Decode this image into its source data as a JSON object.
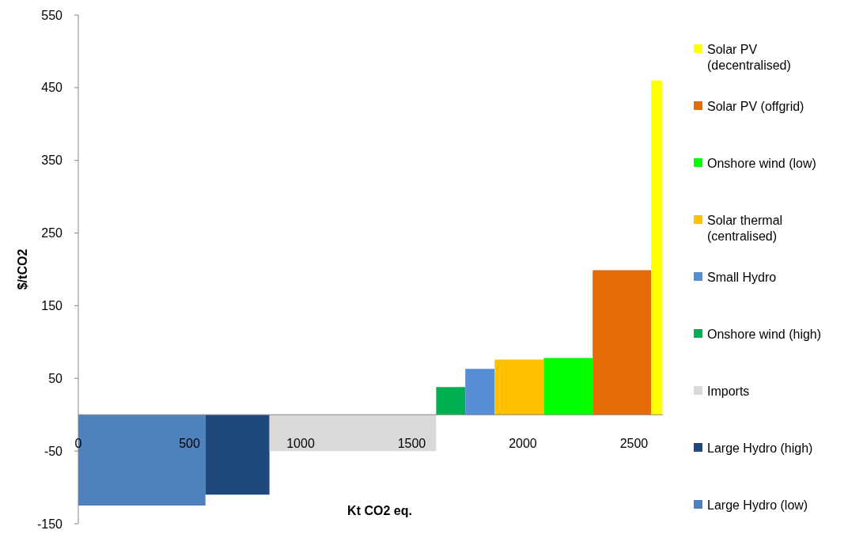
{
  "chart_data": {
    "type": "area",
    "xlabel": "Kt CO2 eq.",
    "ylabel": "$/tCO2",
    "xlim": [
      0,
      2630
    ],
    "xticks": [
      0,
      500,
      1000,
      1500,
      2000,
      2500
    ],
    "ylim": [
      -150,
      550
    ],
    "yticks": [
      -150,
      -50,
      50,
      150,
      250,
      350,
      450,
      550
    ],
    "grid": false,
    "legend": "right",
    "marker": "none",
    "series": [
      {
        "name": "Large Hydro (low)",
        "color": "#4f81bd",
        "x": [
          0,
          572
        ],
        "values": [
          -125,
          -125
        ]
      },
      {
        "name": "Large Hydro (high)",
        "color": "#1f497d",
        "x": [
          572,
          860
        ],
        "values": [
          -110,
          -110
        ]
      },
      {
        "name": "Imports",
        "color": "#d9d9d9",
        "x": [
          860,
          1610
        ],
        "values": [
          -50,
          -50
        ]
      },
      {
        "name": "Onshore wind (high)",
        "color": "#00b050",
        "x": [
          1610,
          1741
        ],
        "values": [
          38,
          38
        ]
      },
      {
        "name": "Small Hydro",
        "color": "#558ed5",
        "x": [
          1741,
          1873
        ],
        "values": [
          63,
          63
        ]
      },
      {
        "name": "Solar thermal (centralised)",
        "color": "#ffc000",
        "x": [
          1873,
          2094
        ],
        "values": [
          76,
          76
        ]
      },
      {
        "name": "Onshore wind (low)",
        "color": "#00ff00",
        "x": [
          2094,
          2314
        ],
        "values": [
          78,
          78
        ]
      },
      {
        "name": "Solar PV (offgrid)",
        "color": "#e36c09",
        "x": [
          2314,
          2577
        ],
        "values": [
          199,
          199
        ]
      },
      {
        "name": "Solar PV (decentralised)",
        "color": "#ffff00",
        "x": [
          2577,
          2626
        ],
        "values": [
          460,
          460
        ]
      }
    ]
  }
}
